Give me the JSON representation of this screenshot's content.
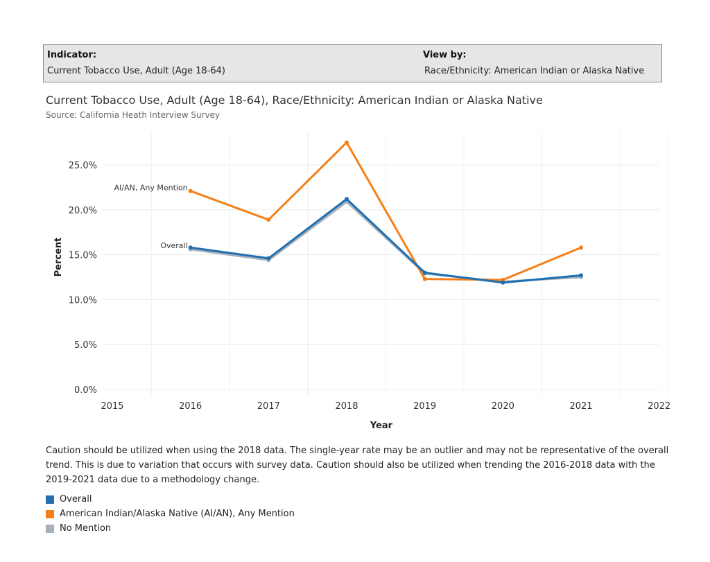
{
  "filters": {
    "indicator_label": "Indicator:",
    "indicator_value": "Current Tobacco Use, Adult (Age 18-64)",
    "viewby_label": "View by:",
    "viewby_value": "Race/Ethnicity: American Indian or Alaska Native"
  },
  "colors": {
    "overall": "#1f6fb2",
    "aian": "#f57f17",
    "no_mention": "#a7afba"
  },
  "chart_data": {
    "type": "line",
    "title": "Current Tobacco Use, Adult (Age 18-64), Race/Ethnicity: American Indian or Alaska Native",
    "subtitle": "Source: California Heath Interview Survey",
    "xlabel": "Year",
    "ylabel": "Percent",
    "x": [
      2016,
      2017,
      2018,
      2019,
      2020,
      2021
    ],
    "xlim": [
      2015,
      2022
    ],
    "xticks": [
      "2015",
      "2016",
      "2017",
      "2018",
      "2019",
      "2020",
      "2021",
      "2022"
    ],
    "ylim": [
      0,
      28
    ],
    "yticks": [
      "0.0%",
      "5.0%",
      "10.0%",
      "15.0%",
      "20.0%",
      "25.0%"
    ],
    "grid": true,
    "series": [
      {
        "name": "No Mention",
        "values": [
          15.6,
          14.4,
          20.9,
          12.9,
          12.0,
          12.5
        ]
      },
      {
        "name": "American Indian/Alaska Native (AI/AN), Any Mention",
        "values": [
          22.1,
          18.9,
          27.5,
          12.3,
          12.2,
          15.8
        ]
      },
      {
        "name": "Overall",
        "values": [
          15.8,
          14.6,
          21.2,
          13.0,
          11.9,
          12.7
        ]
      }
    ],
    "line_labels": {
      "overall": "Overall",
      "aian": "AI/AN, Any Mention"
    }
  },
  "caution": "Caution should be utilized when using the 2018 data. The single-year rate may be an outlier and may not be representative of the overall trend. This is due to variation that occurs with survey data. Caution should also be utilized when trending the 2016-2018 data with the 2019-2021 data due to a methodology change.",
  "legend": [
    {
      "label": "Overall",
      "color": "#1f6fb2"
    },
    {
      "label": "American Indian/Alaska Native (AI/AN), Any Mention",
      "color": "#f57f17"
    },
    {
      "label": "No Mention",
      "color": "#a7afba"
    }
  ]
}
